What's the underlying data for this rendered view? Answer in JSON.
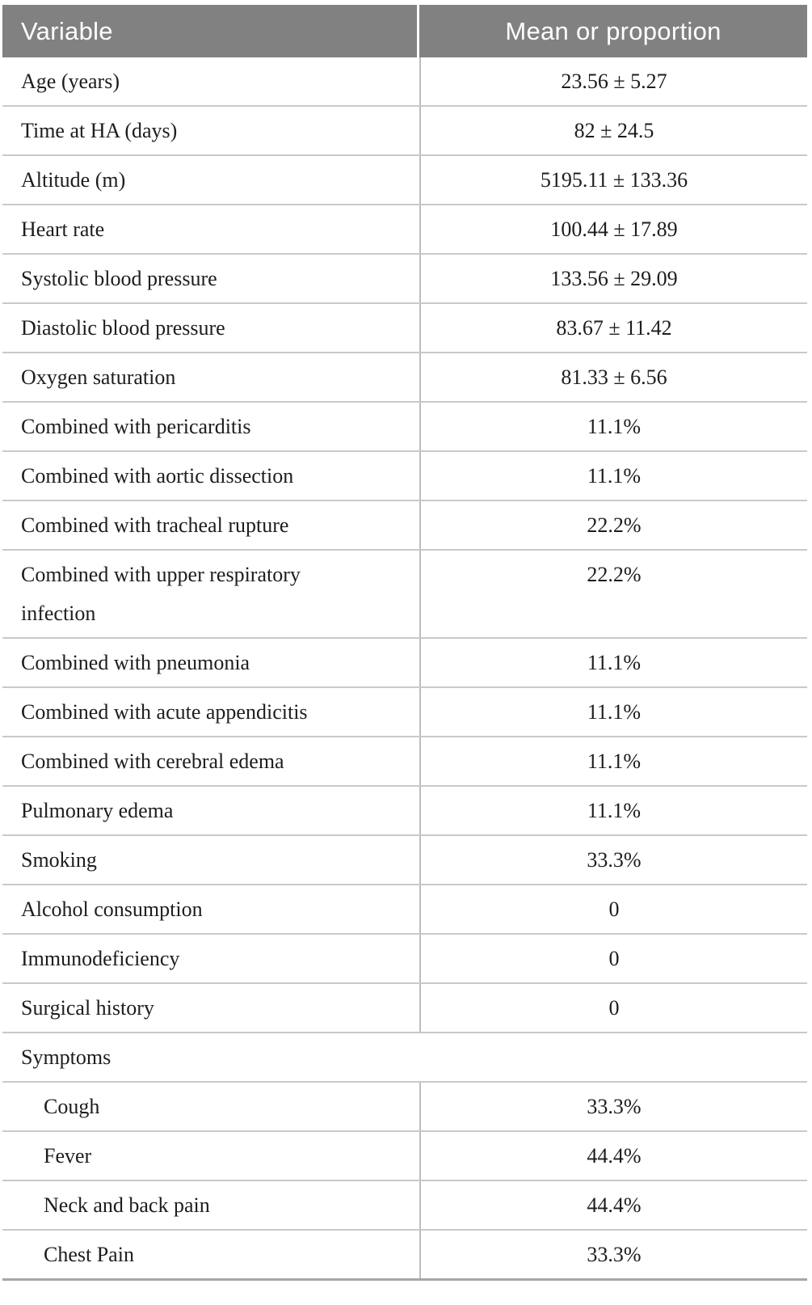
{
  "theme": {
    "header_bg": "#818181",
    "header_text": "#ffffff",
    "body_text": "#1d1d1d",
    "row_line": "#c9c9c9",
    "divider": "#bdbdbd",
    "bottom_line": "#a6a6a6"
  },
  "table": {
    "header": {
      "variable_col": "Variable",
      "value_col": "Mean or proportion"
    },
    "rows": [
      {
        "type": "data",
        "label": "Age (years)",
        "value": "23.56 ± 5.27"
      },
      {
        "type": "data",
        "label": "Time at HA (days)",
        "value": "82 ± 24.5"
      },
      {
        "type": "data",
        "label": "Altitude (m)",
        "value": "5195.11 ± 133.36"
      },
      {
        "type": "data",
        "label": "Heart rate",
        "value": "100.44 ± 17.89"
      },
      {
        "type": "data",
        "label": "Systolic blood pressure",
        "value": "133.56 ± 29.09"
      },
      {
        "type": "data",
        "label": "Diastolic blood pressure",
        "value": "83.67 ± 11.42"
      },
      {
        "type": "data",
        "label": "Oxygen saturation",
        "value": "81.33 ± 6.56"
      },
      {
        "type": "data",
        "label": "Combined with pericarditis",
        "value": "11.1%"
      },
      {
        "type": "data",
        "label": "Combined with aortic dissection",
        "value": "11.1%"
      },
      {
        "type": "data",
        "label": "Combined with tracheal rupture",
        "value": "22.2%"
      },
      {
        "type": "data",
        "label": "Combined with upper respiratory infection",
        "value": "22.2%"
      },
      {
        "type": "data",
        "label": "Combined with pneumonia",
        "value": "11.1%"
      },
      {
        "type": "data",
        "label": "Combined with acute appendicitis",
        "value": "11.1%"
      },
      {
        "type": "data",
        "label": "Combined with cerebral edema",
        "value": "11.1%"
      },
      {
        "type": "data",
        "label": "Pulmonary edema",
        "value": "11.1%"
      },
      {
        "type": "data",
        "label": "Smoking",
        "value": "33.3%"
      },
      {
        "type": "data",
        "label": "Alcohol consumption",
        "value": "0"
      },
      {
        "type": "data",
        "label": "Immunodeficiency",
        "value": "0"
      },
      {
        "type": "data",
        "label": "Surgical history",
        "value": "0"
      },
      {
        "type": "section",
        "label": "Symptoms",
        "value": ""
      },
      {
        "type": "sub",
        "label": "Cough",
        "value": "33.3%"
      },
      {
        "type": "sub",
        "label": "Fever",
        "value": "44.4%"
      },
      {
        "type": "sub",
        "label": "Neck and back pain",
        "value": "44.4%"
      },
      {
        "type": "sub",
        "label": "Chest Pain",
        "value": "33.3%"
      }
    ]
  }
}
